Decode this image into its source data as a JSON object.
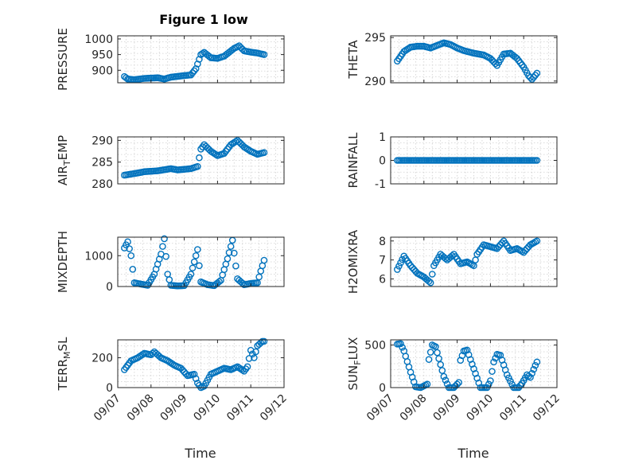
{
  "figure": {
    "title": "Figure 1 low",
    "xlabel": "Time",
    "marker_color": "#0072BD",
    "axes_color": "#262626",
    "grid_color": "#d0d0d0",
    "background": "#ffffff"
  },
  "chart_data": [
    {
      "type": "scatter",
      "ylabel": "PRESSURE",
      "ylim": [
        860,
        1010
      ],
      "yticks": [
        900,
        950,
        1000
      ],
      "xlim": [
        0,
        5
      ],
      "xtick_labels": [
        "09/07",
        "09/08",
        "09/09",
        "09/10",
        "09/11",
        "09/12"
      ],
      "grid": true,
      "marker": "circle-open",
      "x_start": 0.2,
      "x_end": 4.4,
      "x_step": 0.05,
      "y_anchors": [
        [
          0.2,
          880
        ],
        [
          0.3,
          872
        ],
        [
          0.5,
          870
        ],
        [
          0.8,
          874
        ],
        [
          1.2,
          876
        ],
        [
          1.4,
          872
        ],
        [
          1.6,
          878
        ],
        [
          2.0,
          883
        ],
        [
          2.2,
          885
        ],
        [
          2.35,
          905
        ],
        [
          2.5,
          950
        ],
        [
          2.6,
          957
        ],
        [
          2.8,
          940
        ],
        [
          3.0,
          938
        ],
        [
          3.2,
          945
        ],
        [
          3.5,
          970
        ],
        [
          3.65,
          978
        ],
        [
          3.8,
          962
        ],
        [
          4.0,
          958
        ],
        [
          4.2,
          955
        ],
        [
          4.4,
          950
        ]
      ],
      "y_series": []
    },
    {
      "type": "scatter",
      "ylabel": "THETA",
      "ylim": [
        289.8,
        295.2
      ],
      "yticks": [
        290,
        295
      ],
      "xlim": [
        0,
        5
      ],
      "xtick_labels": [
        "09/07",
        "09/08",
        "09/09",
        "09/10",
        "09/11",
        "09/12"
      ],
      "grid": true,
      "marker": "circle-open",
      "x_start": 0.2,
      "x_end": 4.4,
      "x_step": 0.05,
      "y_anchors": [
        [
          0.2,
          292.3
        ],
        [
          0.4,
          293.4
        ],
        [
          0.6,
          293.9
        ],
        [
          0.8,
          294.0
        ],
        [
          1.0,
          294.0
        ],
        [
          1.2,
          293.8
        ],
        [
          1.4,
          294.1
        ],
        [
          1.6,
          294.4
        ],
        [
          1.8,
          294.2
        ],
        [
          2.0,
          293.8
        ],
        [
          2.2,
          293.5
        ],
        [
          2.5,
          293.2
        ],
        [
          2.8,
          293.0
        ],
        [
          3.0,
          292.6
        ],
        [
          3.2,
          291.8
        ],
        [
          3.4,
          293.1
        ],
        [
          3.6,
          293.2
        ],
        [
          3.8,
          292.6
        ],
        [
          4.0,
          291.6
        ],
        [
          4.15,
          290.6
        ],
        [
          4.25,
          290.2
        ],
        [
          4.4,
          290.9
        ]
      ],
      "y_series": []
    },
    {
      "type": "scatter",
      "ylabel": "AIR",
      "ylabel_sub": "T",
      "ylabel_rest": "EMP",
      "ylim": [
        280,
        290.8
      ],
      "yticks": [
        280,
        285,
        290
      ],
      "xlim": [
        0,
        5
      ],
      "xtick_labels": [
        "09/07",
        "09/08",
        "09/09",
        "09/10",
        "09/11",
        "09/12"
      ],
      "grid": true,
      "marker": "circle-open",
      "x_start": 0.2,
      "x_end": 4.4,
      "x_step": 0.05,
      "y_anchors": [
        [
          0.2,
          282.0
        ],
        [
          0.6,
          282.5
        ],
        [
          0.8,
          282.8
        ],
        [
          1.2,
          283.0
        ],
        [
          1.6,
          283.5
        ],
        [
          1.8,
          283.2
        ],
        [
          2.2,
          283.5
        ],
        [
          2.4,
          284.0
        ],
        [
          2.5,
          288.0
        ],
        [
          2.6,
          289.0
        ],
        [
          2.8,
          287.5
        ],
        [
          3.0,
          286.5
        ],
        [
          3.2,
          287.0
        ],
        [
          3.4,
          289.0
        ],
        [
          3.6,
          290.0
        ],
        [
          3.8,
          288.5
        ],
        [
          4.0,
          287.5
        ],
        [
          4.2,
          286.8
        ],
        [
          4.4,
          287.2
        ]
      ],
      "y_series": []
    },
    {
      "type": "scatter",
      "ylabel": "RAINFALL",
      "ylim": [
        -1,
        1
      ],
      "yticks": [
        -1,
        0,
        1
      ],
      "xlim": [
        0,
        5
      ],
      "xtick_labels": [
        "09/07",
        "09/08",
        "09/09",
        "09/10",
        "09/11",
        "09/12"
      ],
      "grid": true,
      "marker": "circle-open",
      "x_start": 0.2,
      "x_end": 4.4,
      "x_step": 0.05,
      "y_anchors": [
        [
          0.2,
          0
        ],
        [
          4.4,
          0
        ]
      ],
      "y_series": []
    },
    {
      "type": "scatter",
      "ylabel": "MIXDEPTH",
      "ylim": [
        0,
        1600
      ],
      "yticks": [
        0,
        1000
      ],
      "xlim": [
        0,
        5
      ],
      "xtick_labels": [
        "09/07",
        "09/08",
        "09/09",
        "09/10",
        "09/11",
        "09/12"
      ],
      "grid": true,
      "marker": "circle-open",
      "x_start": 0.2,
      "x_end": 4.4,
      "x_step": 0.05,
      "y_anchors": [
        [
          0.2,
          1250
        ],
        [
          0.3,
          1450
        ],
        [
          0.4,
          1000
        ],
        [
          0.5,
          120
        ],
        [
          0.7,
          80
        ],
        [
          0.9,
          40
        ],
        [
          1.1,
          400
        ],
        [
          1.3,
          1050
        ],
        [
          1.4,
          1550
        ],
        [
          1.5,
          400
        ],
        [
          1.6,
          40
        ],
        [
          1.8,
          20
        ],
        [
          2.0,
          30
        ],
        [
          2.2,
          400
        ],
        [
          2.4,
          1200
        ],
        [
          2.5,
          150
        ],
        [
          2.7,
          60
        ],
        [
          2.9,
          30
        ],
        [
          3.1,
          200
        ],
        [
          3.3,
          900
        ],
        [
          3.45,
          1500
        ],
        [
          3.6,
          250
        ],
        [
          3.8,
          60
        ],
        [
          4.0,
          100
        ],
        [
          4.2,
          120
        ],
        [
          4.3,
          500
        ],
        [
          4.4,
          850
        ]
      ],
      "y_series": []
    },
    {
      "type": "scatter",
      "ylabel": "H2OMIXRA",
      "ylim": [
        5.6,
        8.2
      ],
      "yticks": [
        6,
        7,
        8
      ],
      "xlim": [
        0,
        5
      ],
      "xtick_labels": [
        "09/07",
        "09/08",
        "09/09",
        "09/10",
        "09/11",
        "09/12"
      ],
      "grid": true,
      "marker": "circle-open",
      "x_start": 0.2,
      "x_end": 4.4,
      "x_step": 0.05,
      "y_anchors": [
        [
          0.2,
          6.5
        ],
        [
          0.4,
          7.2
        ],
        [
          0.6,
          6.7
        ],
        [
          0.8,
          6.3
        ],
        [
          1.0,
          6.1
        ],
        [
          1.2,
          5.8
        ],
        [
          1.3,
          6.7
        ],
        [
          1.5,
          7.3
        ],
        [
          1.7,
          7.0
        ],
        [
          1.9,
          7.3
        ],
        [
          2.1,
          6.8
        ],
        [
          2.3,
          6.9
        ],
        [
          2.5,
          6.7
        ],
        [
          2.6,
          7.3
        ],
        [
          2.8,
          7.8
        ],
        [
          3.0,
          7.7
        ],
        [
          3.2,
          7.6
        ],
        [
          3.4,
          8.0
        ],
        [
          3.6,
          7.5
        ],
        [
          3.8,
          7.6
        ],
        [
          4.0,
          7.4
        ],
        [
          4.2,
          7.8
        ],
        [
          4.4,
          8.0
        ]
      ],
      "y_series": []
    },
    {
      "type": "scatter",
      "ylabel": "TERR",
      "ylabel_sub": "M",
      "ylabel_rest": "SL",
      "ylim": [
        0,
        320
      ],
      "yticks": [
        0,
        200
      ],
      "xlim": [
        0,
        5
      ],
      "xtick_labels": [
        "09/07",
        "09/08",
        "09/09",
        "09/10",
        "09/11",
        "09/12"
      ],
      "grid": true,
      "marker": "circle-open",
      "x_start": 0.2,
      "x_end": 4.4,
      "x_step": 0.05,
      "y_anchors": [
        [
          0.2,
          120
        ],
        [
          0.4,
          180
        ],
        [
          0.6,
          200
        ],
        [
          0.8,
          230
        ],
        [
          1.0,
          220
        ],
        [
          1.1,
          240
        ],
        [
          1.3,
          200
        ],
        [
          1.5,
          180
        ],
        [
          1.7,
          150
        ],
        [
          1.9,
          130
        ],
        [
          2.1,
          80
        ],
        [
          2.3,
          90
        ],
        [
          2.4,
          30
        ],
        [
          2.5,
          0
        ],
        [
          2.6,
          10
        ],
        [
          2.8,
          90
        ],
        [
          3.0,
          110
        ],
        [
          3.2,
          130
        ],
        [
          3.4,
          120
        ],
        [
          3.6,
          140
        ],
        [
          3.8,
          110
        ],
        [
          3.9,
          140
        ],
        [
          4.0,
          250
        ],
        [
          4.1,
          200
        ],
        [
          4.2,
          280
        ],
        [
          4.35,
          310
        ]
      ],
      "y_series": []
    },
    {
      "type": "scatter",
      "ylabel": "SUN",
      "ylabel_sub": "F",
      "ylabel_rest": "LUX",
      "ylim": [
        0,
        560
      ],
      "yticks": [
        0,
        500
      ],
      "xlim": [
        0,
        5
      ],
      "xtick_labels": [
        "09/07",
        "09/08",
        "09/09",
        "09/10",
        "09/11",
        "09/12"
      ],
      "grid": true,
      "marker": "circle-open",
      "x_start": 0.2,
      "x_end": 4.4,
      "x_step": 0.05,
      "y_anchors": [
        [
          0.2,
          510
        ],
        [
          0.3,
          515
        ],
        [
          0.4,
          430
        ],
        [
          0.6,
          180
        ],
        [
          0.75,
          10
        ],
        [
          0.9,
          0
        ],
        [
          1.1,
          40
        ],
        [
          1.15,
          330
        ],
        [
          1.25,
          500
        ],
        [
          1.35,
          480
        ],
        [
          1.6,
          130
        ],
        [
          1.75,
          0
        ],
        [
          1.9,
          0
        ],
        [
          2.05,
          60
        ],
        [
          2.1,
          320
        ],
        [
          2.2,
          430
        ],
        [
          2.3,
          440
        ],
        [
          2.5,
          220
        ],
        [
          2.7,
          0
        ],
        [
          2.9,
          0
        ],
        [
          3.0,
          80
        ],
        [
          3.1,
          300
        ],
        [
          3.2,
          390
        ],
        [
          3.3,
          380
        ],
        [
          3.5,
          150
        ],
        [
          3.7,
          0
        ],
        [
          3.85,
          0
        ],
        [
          3.95,
          50
        ],
        [
          4.1,
          150
        ],
        [
          4.2,
          120
        ],
        [
          4.35,
          260
        ],
        [
          4.4,
          300
        ]
      ],
      "y_series": []
    }
  ]
}
